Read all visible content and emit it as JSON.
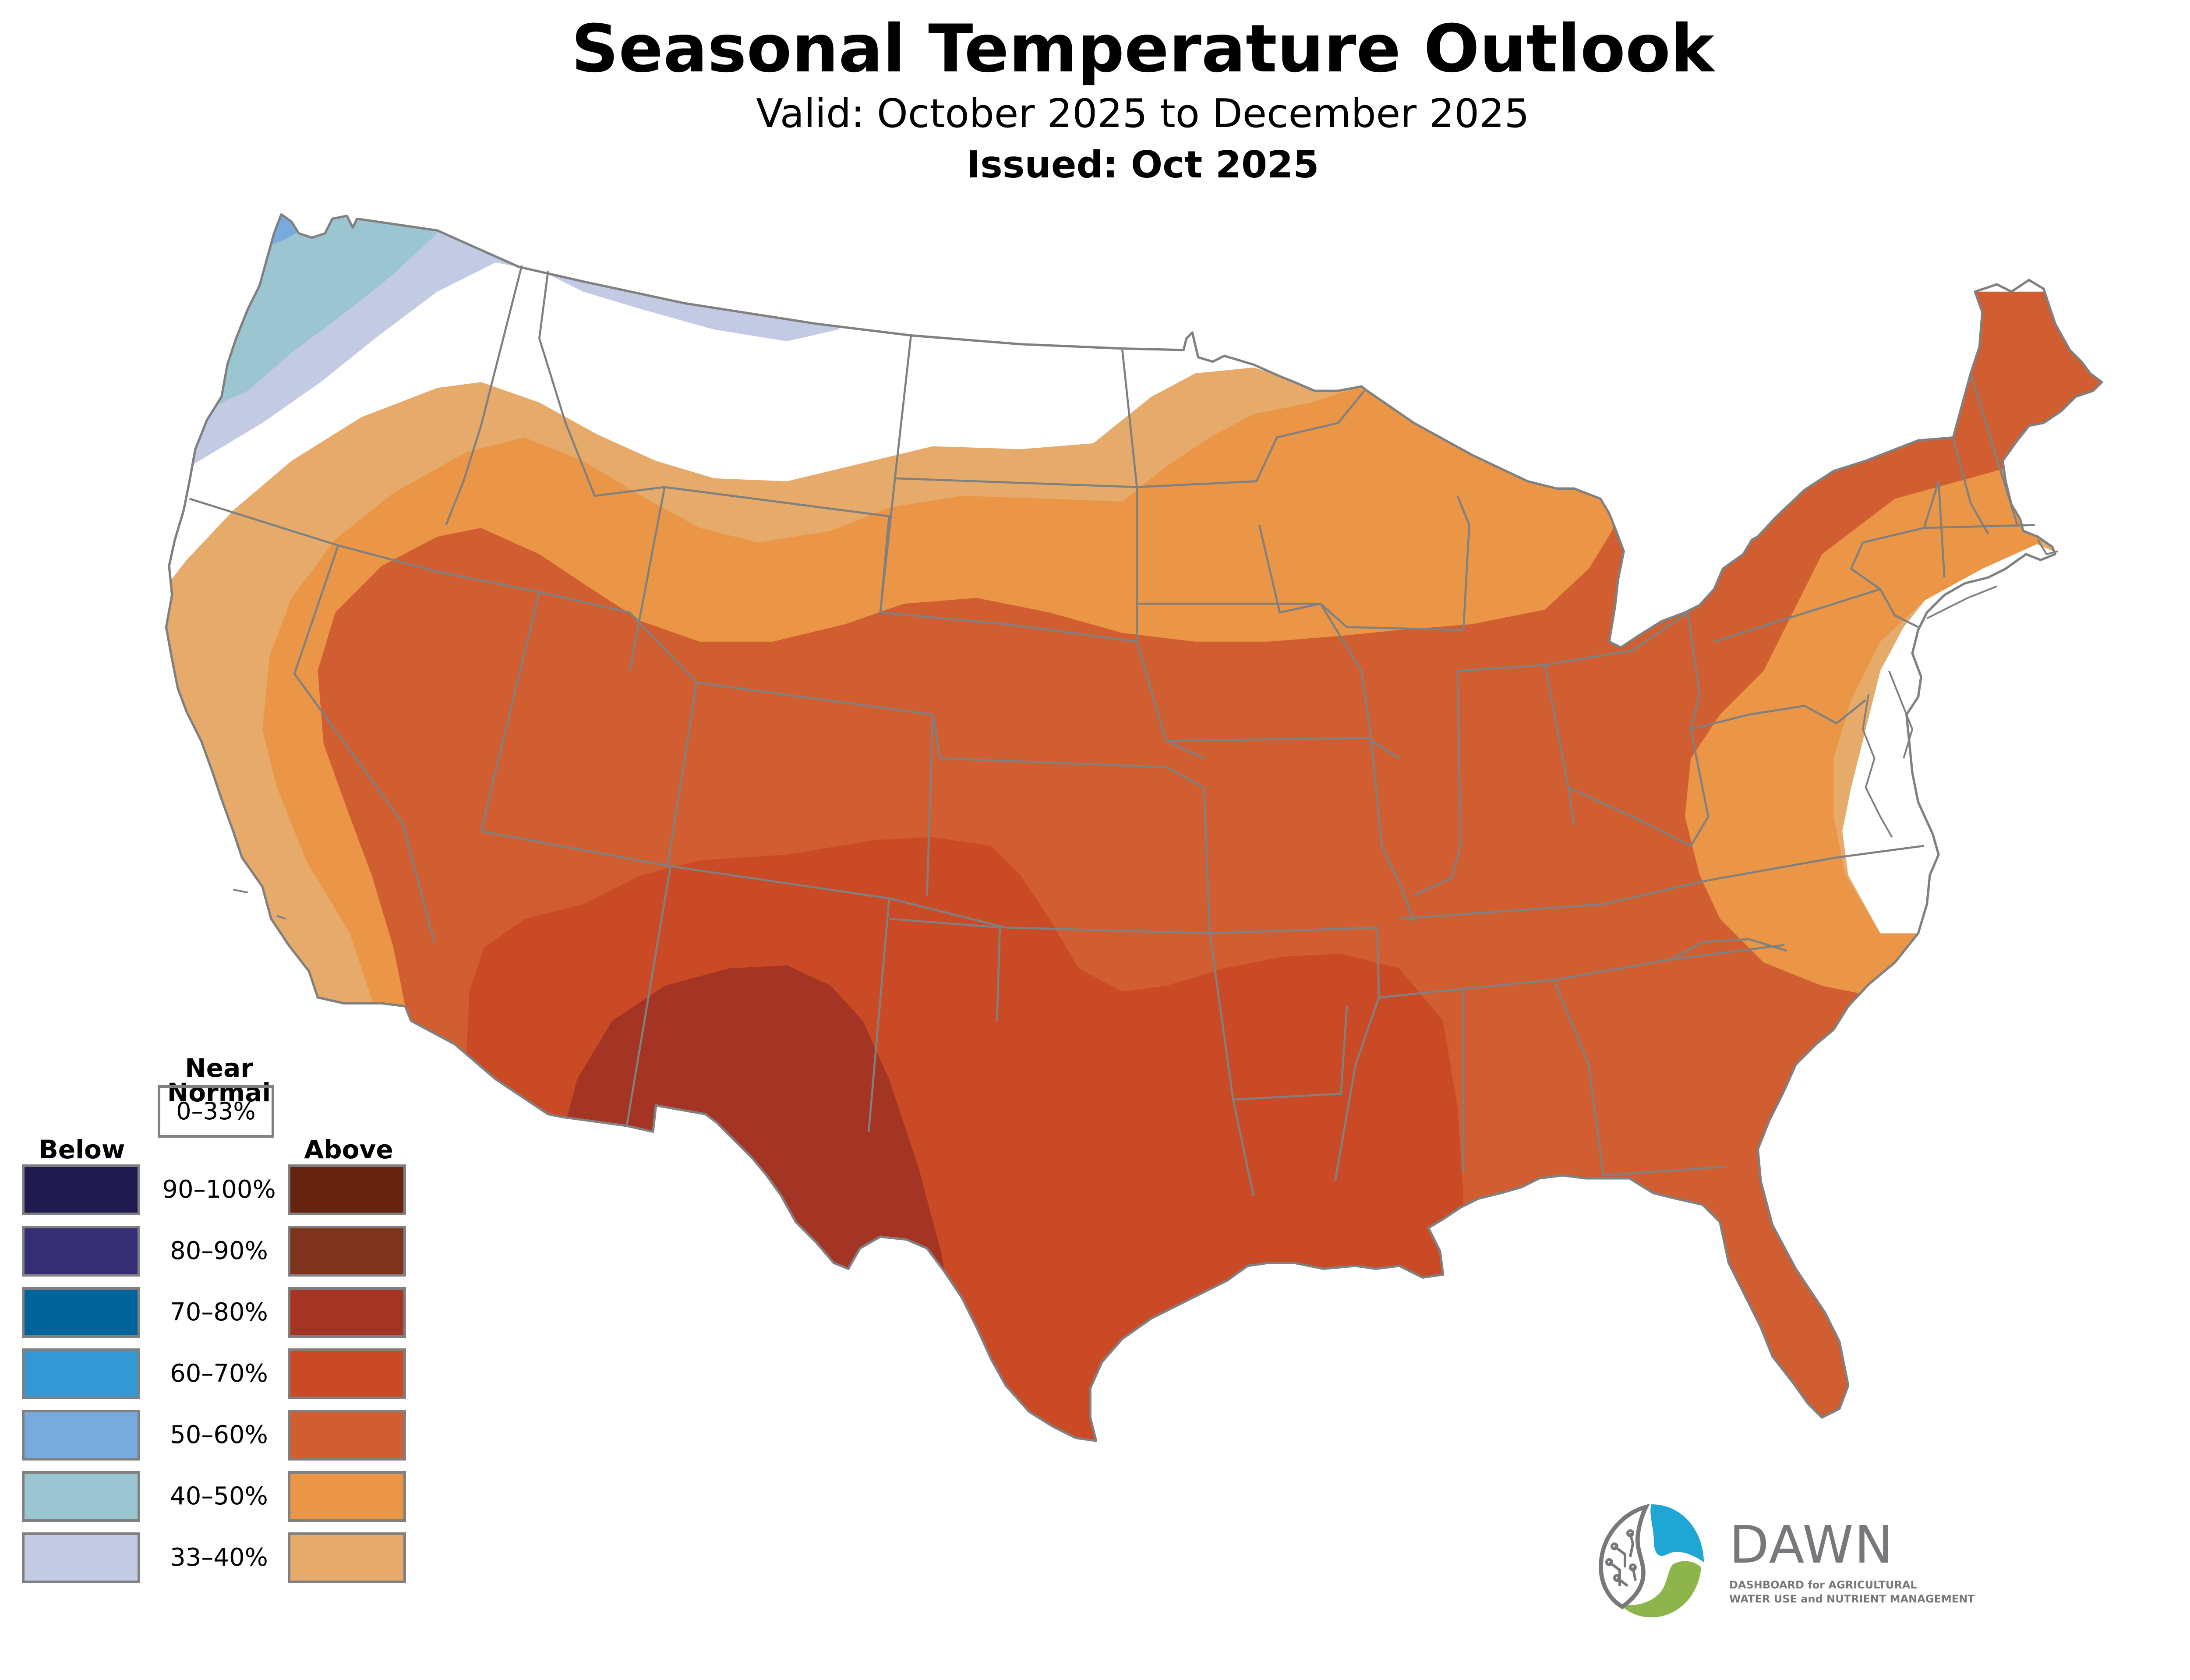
{
  "header": {
    "title": "Seasonal Temperature Outlook",
    "valid": "Valid: October 2025 to December 2025",
    "issued": "Issued: Oct 2025"
  },
  "legend": {
    "near_normal_label": "Near\nNormal",
    "near_normal_line1": "Near",
    "near_normal_line2": "Normal",
    "near_normal_range": "0–33%",
    "near_normal_color": "#ffffff",
    "below_label": "Below",
    "above_label": "Above",
    "rows": [
      {
        "range": "90–100%",
        "below_color": "#1f1a4f",
        "above_color": "#652310"
      },
      {
        "range": "80–90%",
        "below_color": "#352e74",
        "above_color": "#7e331d"
      },
      {
        "range": "70–80%",
        "below_color": "#00649a",
        "above_color": "#a43423"
      },
      {
        "range": "60–70%",
        "below_color": "#3498d4",
        "above_color": "#cb4a26"
      },
      {
        "range": "50–60%",
        "below_color": "#78aadb",
        "above_color": "#d15e31"
      },
      {
        "range": "40–50%",
        "below_color": "#9bc5d1",
        "above_color": "#ea9646"
      },
      {
        "range": "33–40%",
        "below_color": "#c3cbe4",
        "above_color": "#e6aa6a"
      }
    ]
  },
  "map": {
    "border_color": "#808080",
    "categories_shown": [
      {
        "category": "Below",
        "range": "50–60%",
        "color": "#78aadb"
      },
      {
        "category": "Below",
        "range": "40–50%",
        "color": "#9bc5d1"
      },
      {
        "category": "Below",
        "range": "33–40%",
        "color": "#c3cbe4"
      },
      {
        "category": "Near Normal",
        "range": "0–33%",
        "color": "#ffffff"
      },
      {
        "category": "Above",
        "range": "33–40%",
        "color": "#e6aa6a"
      },
      {
        "category": "Above",
        "range": "40–50%",
        "color": "#ea9646"
      },
      {
        "category": "Above",
        "range": "50–60%",
        "color": "#d15e31"
      },
      {
        "category": "Above",
        "range": "60–70%",
        "color": "#cb4a26"
      },
      {
        "category": "Above",
        "range": "70–80%",
        "color": "#a43423"
      }
    ]
  },
  "logo": {
    "name": "DAWN",
    "tagline_line1": "DASHBOARD for AGRICULTURAL",
    "tagline_line2": "WATER USE and NUTRIENT MANAGEMENT",
    "blue": "#1fa6d4",
    "green": "#8db54b",
    "gray": "#77787b"
  }
}
